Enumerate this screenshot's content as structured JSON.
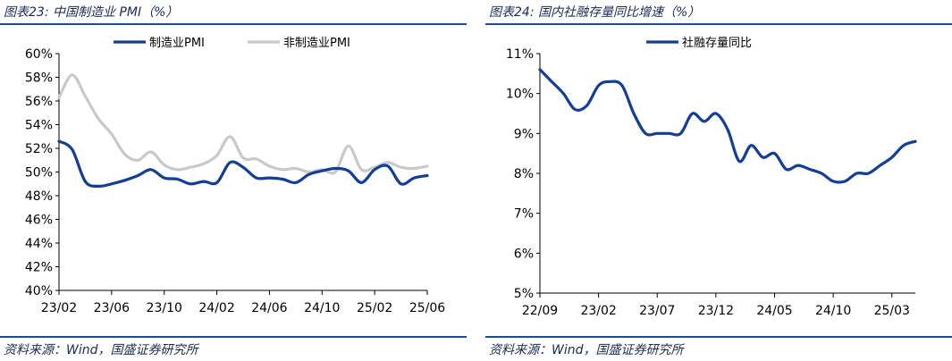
{
  "chart_data": [
    {
      "type": "line",
      "title": "图表23:  中国制造业 PMI（%）",
      "source": "资料来源：Wind，国盛证券研究所",
      "ylim": [
        40,
        60
      ],
      "yticks": [
        "40%",
        "42%",
        "44%",
        "46%",
        "48%",
        "50%",
        "52%",
        "54%",
        "56%",
        "58%",
        "60%"
      ],
      "xticks": [
        "23/02",
        "23/06",
        "23/10",
        "24/02",
        "24/06",
        "24/10",
        "25/02",
        "25/06"
      ],
      "x": [
        "23/02",
        "23/03",
        "23/04",
        "23/05",
        "23/06",
        "23/07",
        "23/08",
        "23/09",
        "23/10",
        "23/11",
        "23/12",
        "24/01",
        "24/02",
        "24/03",
        "24/04",
        "24/05",
        "24/06",
        "24/07",
        "24/08",
        "24/09",
        "24/10",
        "24/11",
        "24/12",
        "25/01",
        "25/02",
        "25/03",
        "25/04",
        "25/05",
        "25/06"
      ],
      "legend_position": "top",
      "series": [
        {
          "name": "制造业PMI",
          "color": "#123e96",
          "values": [
            52.6,
            51.9,
            49.2,
            48.8,
            49.0,
            49.3,
            49.7,
            50.2,
            49.5,
            49.4,
            49.0,
            49.2,
            49.1,
            50.8,
            50.4,
            49.5,
            49.5,
            49.4,
            49.1,
            49.8,
            50.1,
            50.3,
            50.1,
            49.1,
            50.2,
            50.5,
            49.0,
            49.5,
            49.7
          ]
        },
        {
          "name": "非制造业PMI",
          "color": "#c9c9c9",
          "values": [
            56.3,
            58.2,
            56.4,
            54.5,
            53.2,
            51.5,
            51.0,
            51.7,
            50.6,
            50.2,
            50.4,
            50.7,
            51.4,
            53.0,
            51.2,
            51.1,
            50.5,
            50.2,
            50.3,
            50.0,
            50.2,
            50.0,
            52.2,
            50.2,
            50.4,
            50.8,
            50.4,
            50.3,
            50.5
          ]
        }
      ]
    },
    {
      "type": "line",
      "title": "图表24:  国内社融存量同比增速（%）",
      "source": "资料来源：Wind，国盛证券研究所",
      "ylim": [
        5,
        11
      ],
      "yticks": [
        "5%",
        "6%",
        "7%",
        "8%",
        "9%",
        "10%",
        "11%"
      ],
      "xticks": [
        "22/09",
        "23/02",
        "23/07",
        "23/12",
        "24/05",
        "24/10",
        "25/03"
      ],
      "x": [
        "22/09",
        "22/10",
        "22/11",
        "22/12",
        "23/01",
        "23/02",
        "23/03",
        "23/04",
        "23/05",
        "23/06",
        "23/07",
        "23/08",
        "23/09",
        "23/10",
        "23/11",
        "23/12",
        "24/01",
        "24/02",
        "24/03",
        "24/04",
        "24/05",
        "24/06",
        "24/07",
        "24/08",
        "24/09",
        "24/10",
        "24/11",
        "24/12",
        "25/01",
        "25/02",
        "25/03",
        "25/04",
        "25/05"
      ],
      "legend_position": "top",
      "series": [
        {
          "name": "社融存量同比",
          "color": "#123e96",
          "values": [
            10.6,
            10.3,
            10.0,
            9.6,
            9.7,
            10.2,
            10.3,
            10.2,
            9.5,
            9.0,
            9.0,
            9.0,
            9.0,
            9.5,
            9.3,
            9.5,
            9.1,
            8.3,
            8.7,
            8.4,
            8.5,
            8.1,
            8.2,
            8.1,
            8.0,
            7.8,
            7.8,
            8.0,
            8.0,
            8.2,
            8.4,
            8.7,
            8.8
          ]
        }
      ]
    }
  ]
}
